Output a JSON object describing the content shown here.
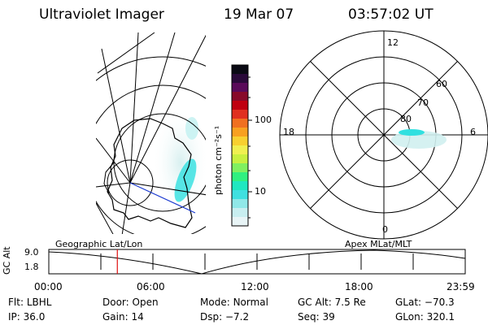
{
  "header": {
    "instrument": "Ultraviolet Imager",
    "date": "19 Mar 07",
    "time": "03:57:02 UT"
  },
  "colorbar": {
    "label": "photon cm⁻²s⁻¹",
    "ticks": [
      "100",
      "10"
    ],
    "colors": [
      "#0a0a14",
      "#2a0a3a",
      "#5a0a5a",
      "#880a2a",
      "#c00010",
      "#e03020",
      "#f07020",
      "#f8a020",
      "#f8d030",
      "#f0f050",
      "#c8f040",
      "#80f060",
      "#30f080",
      "#20e8c0",
      "#40e0e0",
      "#90e8e8",
      "#c8eef0",
      "#e8f4f6"
    ]
  },
  "polar_plot": {
    "labels": {
      "top": "12",
      "bottom": "0",
      "left": "18",
      "right": "6"
    },
    "rings": [
      "60",
      "70",
      "80"
    ]
  },
  "timeline": {
    "ylabel": "GC Alt",
    "yticks": [
      "9.0",
      "1.8"
    ],
    "left_title": "Geographic Lat/Lon",
    "right_title": "Apex MLat/MLT",
    "xticks": [
      "00:00",
      "06:00",
      "12:00",
      "18:00",
      "23:59"
    ],
    "marker_time_hours": 3.95
  },
  "status": {
    "row1": [
      {
        "label": "Flt:",
        "value": "LBHL"
      },
      {
        "label": "Door:",
        "value": "Open"
      },
      {
        "label": "Mode:",
        "value": "Normal"
      },
      {
        "label": "GC Alt:",
        "value": "7.5 Re"
      },
      {
        "label": "GLat:",
        "value": "−70.3"
      }
    ],
    "row2": [
      {
        "label": "IP:",
        "value": "36.0"
      },
      {
        "label": "Gain:",
        "value": "14"
      },
      {
        "label": "Dsp:",
        "value": "−7.2"
      },
      {
        "label": "Seq:",
        "value": "39"
      },
      {
        "label": "GLon:",
        "value": "320.1"
      }
    ]
  }
}
